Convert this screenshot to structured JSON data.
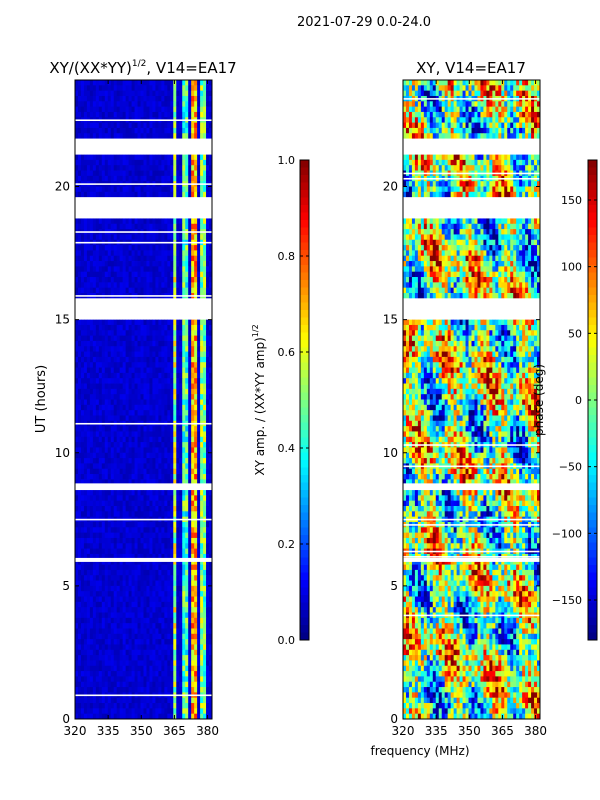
{
  "suptitle": "2021-07-29 0.0-24.0",
  "shared_xlabel": "frequency (MHz)",
  "chart_data": [
    {
      "type": "heatmap",
      "title": "XY/(XX*YY)",
      "title_sup": "1/2",
      "title_tail": ", V14=EA17",
      "xlabel": "",
      "ylabel": "UT (hours)",
      "xlim": [
        320,
        382
      ],
      "ylim": [
        0,
        24
      ],
      "xticks": [
        320,
        335,
        350,
        365,
        380
      ],
      "yticks": [
        0,
        5,
        10,
        15,
        20
      ],
      "grid": false,
      "colorbar": {
        "label": "XY amp. / (XX*YY amp)",
        "label_sup": "1/2",
        "range": [
          0.0,
          1.0
        ],
        "ticks": [
          "0.0",
          "0.2",
          "0.4",
          "0.6",
          "0.8",
          "1.0"
        ],
        "tick_values": [
          0.0,
          0.2,
          0.4,
          0.6,
          0.8,
          1.0
        ],
        "colormap": "jet"
      },
      "gaps_hours": [
        [
          21.2,
          21.8
        ],
        [
          18.9,
          19.6
        ],
        [
          15.1,
          15.8
        ],
        [
          8.6,
          8.85
        ],
        [
          5.9,
          6.05
        ]
      ],
      "bright_channels_mhz": [
        [
          364,
          366,
          0.55
        ],
        [
          369,
          371,
          0.45
        ],
        [
          373,
          375,
          0.7
        ],
        [
          377,
          379,
          0.5
        ],
        [
          380,
          381,
          0.45
        ]
      ],
      "background_level": 0.08
    },
    {
      "type": "heatmap",
      "title": "XY, V14=EA17",
      "xlabel": "",
      "ylabel": "",
      "xlim": [
        320,
        382
      ],
      "ylim": [
        0,
        24
      ],
      "xticks": [
        320,
        335,
        350,
        365,
        380
      ],
      "yticks": [
        0,
        5,
        10,
        15,
        20
      ],
      "grid": false,
      "colorbar": {
        "label": "phase (deg)",
        "range": [
          -180,
          180
        ],
        "ticks": [
          "150",
          "100",
          "50",
          "0",
          "−50",
          "−100",
          "−150"
        ],
        "tick_values": [
          150,
          100,
          50,
          0,
          -50,
          -100,
          -150
        ],
        "colormap": "jet"
      },
      "gaps_hours": [
        [
          21.2,
          21.8
        ],
        [
          18.9,
          19.6
        ],
        [
          15.1,
          15.8
        ],
        [
          8.6,
          8.85
        ],
        [
          5.9,
          6.05
        ]
      ]
    }
  ]
}
